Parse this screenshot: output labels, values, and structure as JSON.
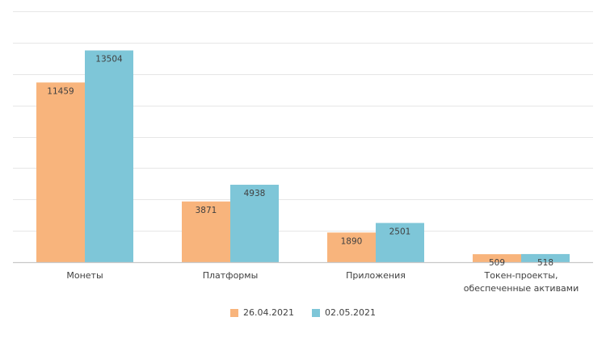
{
  "chart_data": {
    "type": "bar",
    "title": "",
    "xlabel": "",
    "ylabel": "",
    "categories": [
      [
        "Монеты"
      ],
      [
        "Платформы"
      ],
      [
        "Приложения"
      ],
      [
        "Токен-проекты,",
        "обеспеченные активами"
      ]
    ],
    "series": [
      {
        "name": "26.04.2021",
        "color": "#F8B47C",
        "values": [
          11459,
          3871,
          1890,
          509
        ]
      },
      {
        "name": "02.05.2021",
        "color": "#7EC6D8",
        "values": [
          13504,
          4938,
          2501,
          518
        ]
      }
    ],
    "ylim": [
      0,
      16000
    ],
    "y_gridline_step": 2000,
    "grid": true,
    "legend_position": "bottom",
    "data_labels": true
  }
}
